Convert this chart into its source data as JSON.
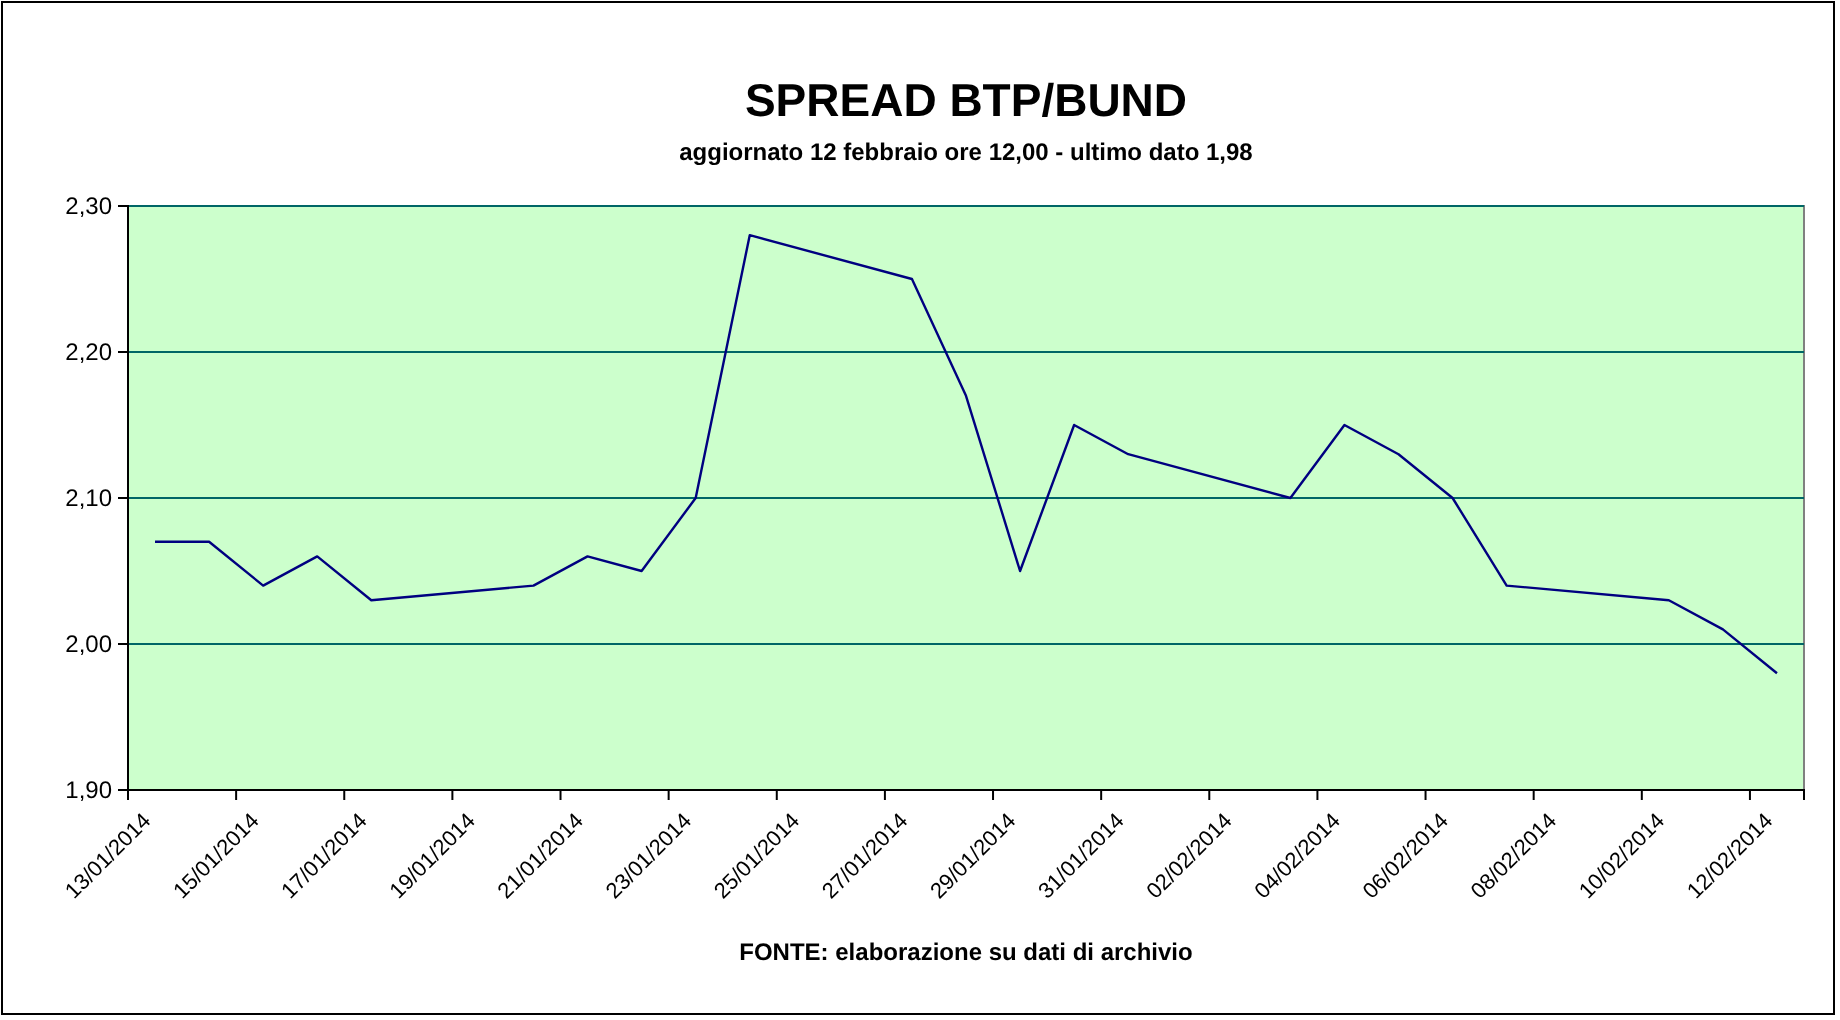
{
  "chart_data": {
    "type": "line",
    "title": "SPREAD BTP/BUND",
    "subtitle": "aggiornato 12 febbraio ore 12,00 - ultimo dato 1,98",
    "annotations": [
      "FONTE: elaborazione su dati di archivio"
    ],
    "x": [
      "2014-01-13T12:00",
      "2014-01-14T12:00",
      "2014-01-15T12:00",
      "2014-01-16T12:00",
      "2014-01-17T12:00",
      "2014-01-20T12:00",
      "2014-01-21T12:00",
      "2014-01-22T12:00",
      "2014-01-23T12:00",
      "2014-01-24T12:00",
      "2014-01-27T12:00",
      "2014-01-28T12:00",
      "2014-01-29T12:00",
      "2014-01-30T12:00",
      "2014-01-31T12:00",
      "2014-02-03T12:00",
      "2014-02-04T12:00",
      "2014-02-05T12:00",
      "2014-02-06T12:00",
      "2014-02-07T12:00",
      "2014-02-10T12:00",
      "2014-02-11T12:00",
      "2014-02-12T12:00"
    ],
    "series": [
      {
        "color": "#000080",
        "values": [
          2.07,
          2.07,
          2.04,
          2.06,
          2.03,
          2.04,
          2.06,
          2.05,
          2.1,
          2.28,
          2.25,
          2.17,
          2.05,
          2.15,
          2.13,
          2.1,
          2.15,
          2.13,
          2.1,
          2.04,
          2.03,
          2.01,
          1.98
        ]
      }
    ],
    "xlim": [
      "2014-01-13",
      "2014-02-13"
    ],
    "xticks": [
      {
        "value": "2014-01-13",
        "label": "13/01/2014"
      },
      {
        "value": "2014-01-15",
        "label": "15/01/2014"
      },
      {
        "value": "2014-01-17",
        "label": "17/01/2014"
      },
      {
        "value": "2014-01-19",
        "label": "19/01/2014"
      },
      {
        "value": "2014-01-21",
        "label": "21/01/2014"
      },
      {
        "value": "2014-01-23",
        "label": "23/01/2014"
      },
      {
        "value": "2014-01-25",
        "label": "25/01/2014"
      },
      {
        "value": "2014-01-27",
        "label": "27/01/2014"
      },
      {
        "value": "2014-01-29",
        "label": "29/01/2014"
      },
      {
        "value": "2014-01-31",
        "label": "31/01/2014"
      },
      {
        "value": "2014-02-02",
        "label": "02/02/2014"
      },
      {
        "value": "2014-02-04",
        "label": "04/02/2014"
      },
      {
        "value": "2014-02-06",
        "label": "06/02/2014"
      },
      {
        "value": "2014-02-08",
        "label": "08/02/2014"
      },
      {
        "value": "2014-02-10",
        "label": "10/02/2014"
      },
      {
        "value": "2014-02-12",
        "label": "12/02/2014"
      }
    ],
    "ylim": [
      1.9,
      2.3
    ],
    "yticks": [
      {
        "value": 1.9,
        "label": "1,90"
      },
      {
        "value": 2.0,
        "label": "2,00"
      },
      {
        "value": 2.1,
        "label": "2,10"
      },
      {
        "value": 2.2,
        "label": "2,20"
      },
      {
        "value": 2.3,
        "label": "2,30"
      }
    ],
    "grid": "y"
  }
}
